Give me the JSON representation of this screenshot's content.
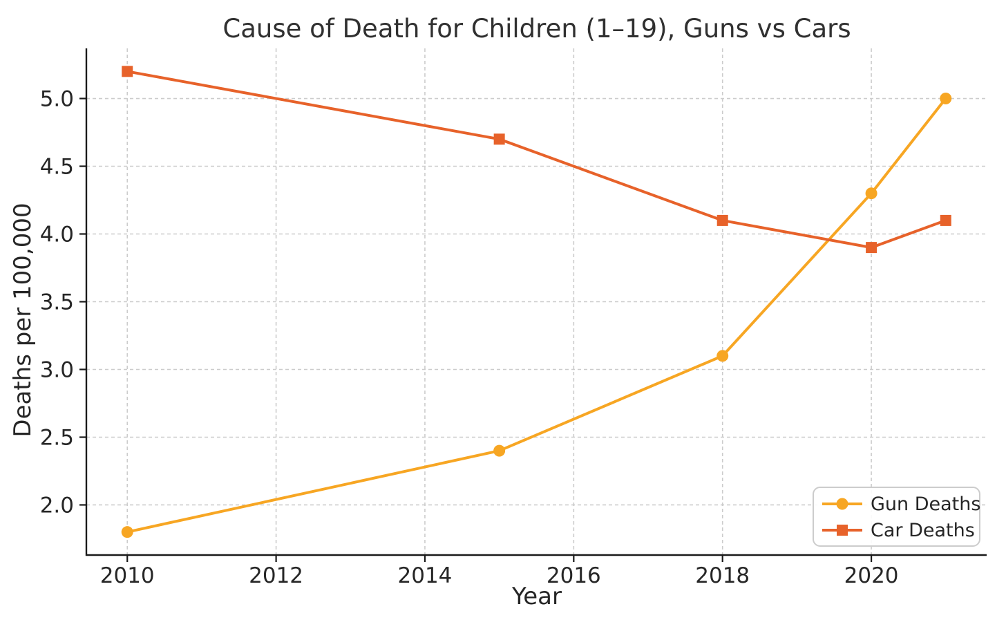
{
  "chart_data": {
    "type": "line",
    "title": "Cause of Death for Children (1–19), Guns vs Cars",
    "xlabel": "Year",
    "ylabel": "Deaths per 100,000",
    "x": [
      2010,
      2015,
      2018,
      2020,
      2021
    ],
    "series": [
      {
        "name": "Gun Deaths",
        "marker": "circle",
        "color": "#F7A623",
        "values": [
          1.8,
          2.4,
          3.1,
          4.3,
          5.0
        ]
      },
      {
        "name": "Car Deaths",
        "marker": "square",
        "color": "#E7622A",
        "values": [
          5.2,
          4.7,
          4.1,
          3.9,
          4.1
        ]
      }
    ],
    "xticks": [
      2010,
      2012,
      2014,
      2016,
      2018,
      2020
    ],
    "yticks": [
      2.0,
      2.5,
      3.0,
      3.5,
      4.0,
      4.5,
      5.0
    ],
    "xlim": [
      2009.45,
      2021.55
    ],
    "ylim": [
      1.63,
      5.37
    ],
    "grid": true,
    "grid_linestyle": "dashed",
    "legend_position": "lower right",
    "colors": {
      "background": "#ffffff",
      "grid": "#cccccc",
      "spine": "#1a1a1a",
      "text": "#262626",
      "legend_border": "#cccccc",
      "legend_background": "#ffffff"
    }
  }
}
